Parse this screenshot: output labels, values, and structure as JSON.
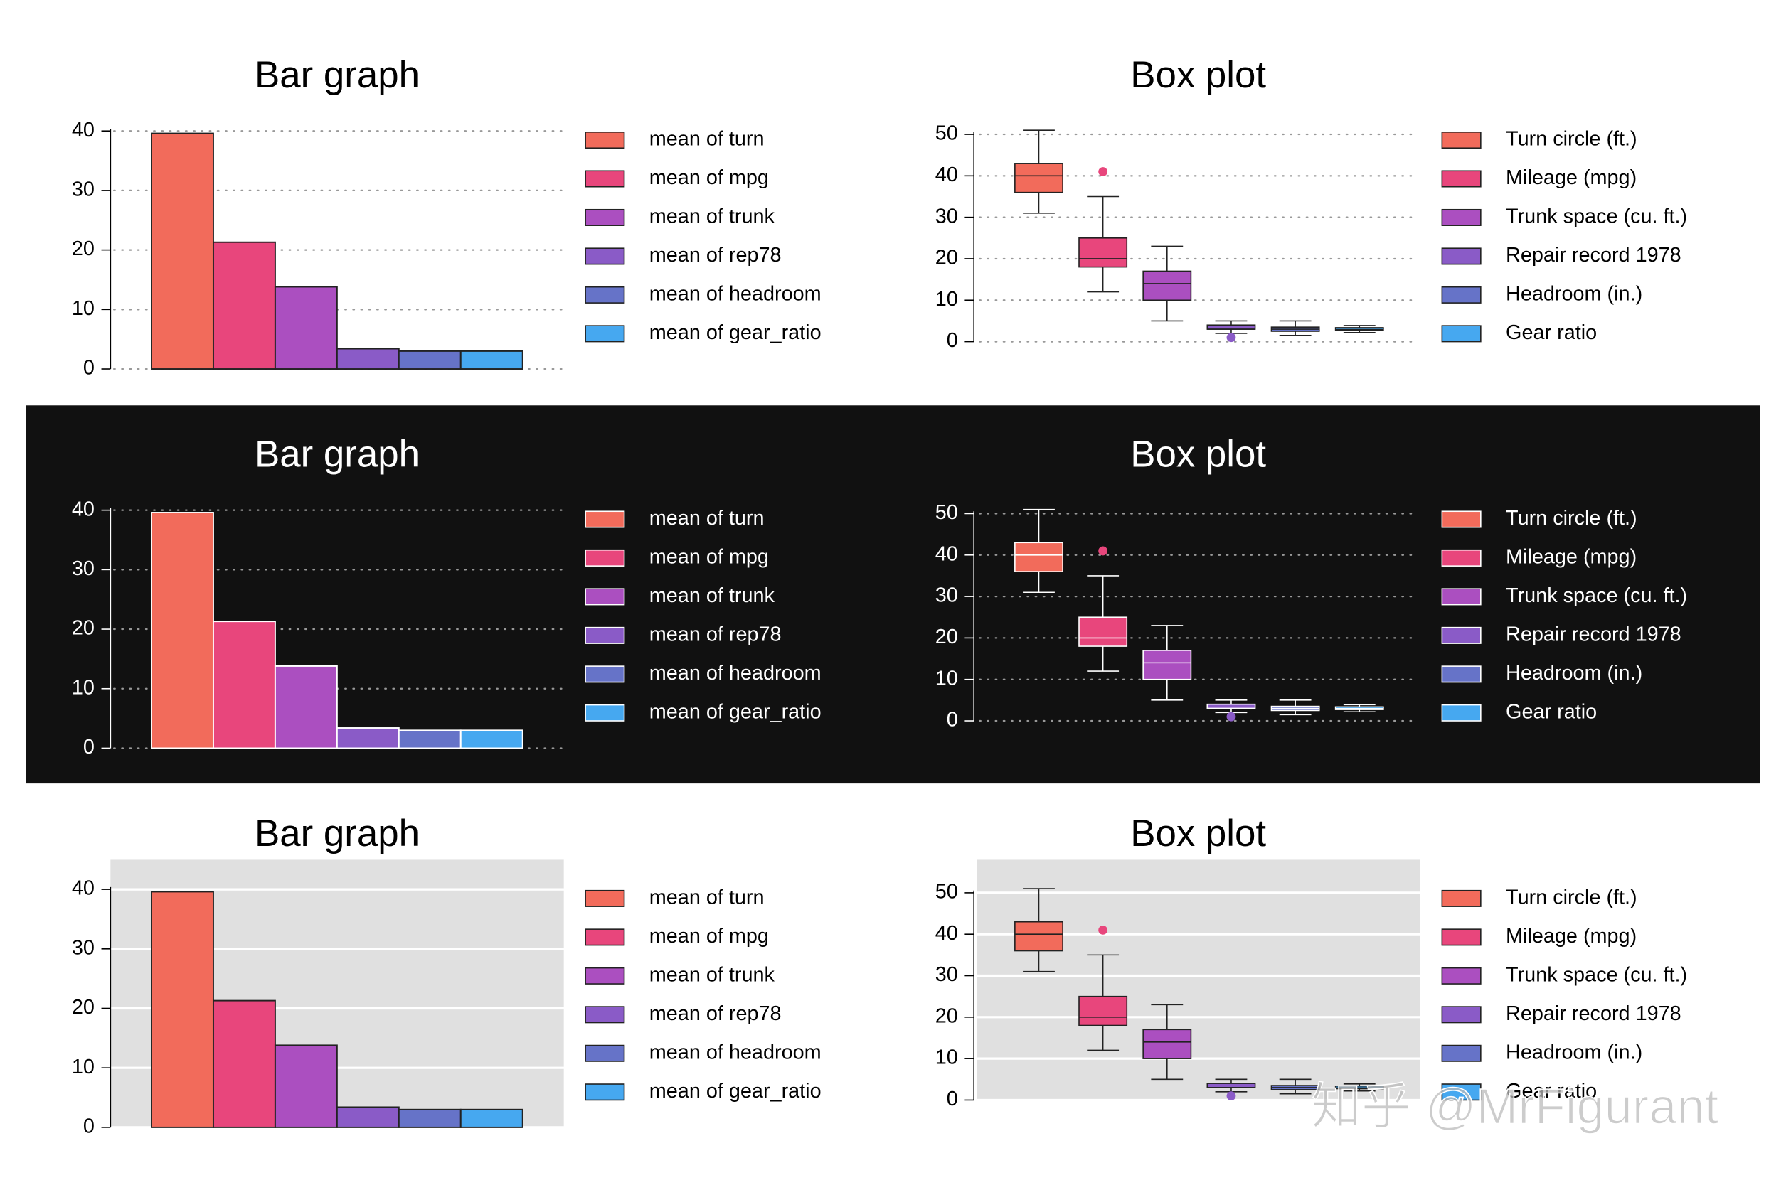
{
  "chart_data": [
    {
      "type": "bar",
      "title": "Bar graph",
      "background": "#ffffff",
      "text_color": "#000000",
      "outline": "#222222",
      "grid": "dotted",
      "grid_color": "#999999",
      "ylim": [
        0,
        40
      ],
      "yticks": [
        0,
        10,
        20,
        30,
        40
      ],
      "series": [
        {
          "name": "mean of turn",
          "color": "#f26b5b",
          "values": [
            39.6
          ]
        },
        {
          "name": "mean of mpg",
          "color": "#e8467c",
          "values": [
            21.3
          ]
        },
        {
          "name": "mean of trunk",
          "color": "#ab4fc0",
          "values": [
            13.8
          ]
        },
        {
          "name": "mean of rep78",
          "color": "#8a5bc7",
          "values": [
            3.4
          ]
        },
        {
          "name": "mean of headroom",
          "color": "#6673c8",
          "values": [
            3.0
          ]
        },
        {
          "name": "mean of gear_ratio",
          "color": "#46a8f0",
          "values": [
            3.0
          ]
        }
      ]
    },
    {
      "type": "box",
      "title": "Box plot",
      "background": "#ffffff",
      "text_color": "#000000",
      "outline": "#222222",
      "grid": "dotted",
      "grid_color": "#999999",
      "ylim": [
        0,
        50
      ],
      "yticks": [
        0,
        10,
        20,
        30,
        40,
        50
      ],
      "series": [
        {
          "name": "Turn circle (ft.)",
          "color": "#f26b5b",
          "min": 31,
          "q1": 36,
          "median": 40,
          "q3": 43,
          "max": 51,
          "outliers": []
        },
        {
          "name": "Mileage (mpg)",
          "color": "#e8467c",
          "min": 12,
          "q1": 18,
          "median": 20,
          "q3": 25,
          "max": 35,
          "outliers": [
            41
          ]
        },
        {
          "name": "Trunk space (cu. ft.)",
          "color": "#ab4fc0",
          "min": 5,
          "q1": 10,
          "median": 14,
          "q3": 17,
          "max": 23,
          "outliers": []
        },
        {
          "name": "Repair record 1978",
          "color": "#8a5bc7",
          "min": 2,
          "q1": 3,
          "median": 3,
          "q3": 4,
          "max": 5,
          "outliers": [
            1
          ]
        },
        {
          "name": "Headroom (in.)",
          "color": "#6673c8",
          "min": 1.5,
          "q1": 2.5,
          "median": 3,
          "q3": 3.5,
          "max": 5,
          "outliers": []
        },
        {
          "name": "Gear ratio",
          "color": "#46a8f0",
          "min": 2.19,
          "q1": 2.73,
          "median": 2.95,
          "q3": 3.37,
          "max": 3.89,
          "outliers": []
        }
      ]
    },
    {
      "type": "bar",
      "title": "Bar graph",
      "background": "#111111",
      "text_color": "#ffffff",
      "outline": "#ffffff",
      "grid": "dotted",
      "grid_color": "#999999",
      "ylim": [
        0,
        40
      ],
      "yticks": [
        0,
        10,
        20,
        30,
        40
      ],
      "series": [
        {
          "name": "mean of turn",
          "color": "#f26b5b",
          "values": [
            39.6
          ]
        },
        {
          "name": "mean of mpg",
          "color": "#e8467c",
          "values": [
            21.3
          ]
        },
        {
          "name": "mean of trunk",
          "color": "#ab4fc0",
          "values": [
            13.8
          ]
        },
        {
          "name": "mean of rep78",
          "color": "#8a5bc7",
          "values": [
            3.4
          ]
        },
        {
          "name": "mean of headroom",
          "color": "#6673c8",
          "values": [
            3.0
          ]
        },
        {
          "name": "mean of gear_ratio",
          "color": "#46a8f0",
          "values": [
            3.0
          ]
        }
      ]
    },
    {
      "type": "box",
      "title": "Box plot",
      "background": "#111111",
      "text_color": "#ffffff",
      "outline": "#ffffff",
      "grid": "dotted",
      "grid_color": "#999999",
      "ylim": [
        0,
        50
      ],
      "yticks": [
        0,
        10,
        20,
        30,
        40,
        50
      ],
      "series": [
        {
          "name": "Turn circle (ft.)",
          "color": "#f26b5b",
          "min": 31,
          "q1": 36,
          "median": 40,
          "q3": 43,
          "max": 51,
          "outliers": []
        },
        {
          "name": "Mileage (mpg)",
          "color": "#e8467c",
          "min": 12,
          "q1": 18,
          "median": 20,
          "q3": 25,
          "max": 35,
          "outliers": [
            41
          ]
        },
        {
          "name": "Trunk space (cu. ft.)",
          "color": "#ab4fc0",
          "min": 5,
          "q1": 10,
          "median": 14,
          "q3": 17,
          "max": 23,
          "outliers": []
        },
        {
          "name": "Repair record 1978",
          "color": "#8a5bc7",
          "min": 2,
          "q1": 3,
          "median": 3,
          "q3": 4,
          "max": 5,
          "outliers": [
            1
          ]
        },
        {
          "name": "Headroom (in.)",
          "color": "#6673c8",
          "min": 1.5,
          "q1": 2.5,
          "median": 3,
          "q3": 3.5,
          "max": 5,
          "outliers": []
        },
        {
          "name": "Gear ratio",
          "color": "#46a8f0",
          "min": 2.19,
          "q1": 2.73,
          "median": 2.95,
          "q3": 3.37,
          "max": 3.89,
          "outliers": []
        }
      ]
    },
    {
      "type": "bar",
      "title": "Bar graph",
      "background": "#ffffff",
      "plot_background": "#e0e0e0",
      "text_color": "#000000",
      "outline": "#222222",
      "grid": "solid",
      "grid_color": "#ffffff",
      "ylim": [
        0,
        40
      ],
      "yticks": [
        0,
        10,
        20,
        30,
        40
      ],
      "series": [
        {
          "name": "mean of turn",
          "color": "#f26b5b",
          "values": [
            39.6
          ]
        },
        {
          "name": "mean of mpg",
          "color": "#e8467c",
          "values": [
            21.3
          ]
        },
        {
          "name": "mean of trunk",
          "color": "#ab4fc0",
          "values": [
            13.8
          ]
        },
        {
          "name": "mean of rep78",
          "color": "#8a5bc7",
          "values": [
            3.4
          ]
        },
        {
          "name": "mean of headroom",
          "color": "#6673c8",
          "values": [
            3.0
          ]
        },
        {
          "name": "mean of gear_ratio",
          "color": "#46a8f0",
          "values": [
            3.0
          ]
        }
      ]
    },
    {
      "type": "box",
      "title": "Box plot",
      "background": "#ffffff",
      "plot_background": "#e0e0e0",
      "text_color": "#000000",
      "outline": "#222222",
      "grid": "solid",
      "grid_color": "#ffffff",
      "ylim": [
        0,
        50
      ],
      "yticks": [
        0,
        10,
        20,
        30,
        40,
        50
      ],
      "series": [
        {
          "name": "Turn circle (ft.)",
          "color": "#f26b5b",
          "min": 31,
          "q1": 36,
          "median": 40,
          "q3": 43,
          "max": 51,
          "outliers": []
        },
        {
          "name": "Mileage (mpg)",
          "color": "#e8467c",
          "min": 12,
          "q1": 18,
          "median": 20,
          "q3": 25,
          "max": 35,
          "outliers": [
            41
          ]
        },
        {
          "name": "Trunk space (cu. ft.)",
          "color": "#ab4fc0",
          "min": 5,
          "q1": 10,
          "median": 14,
          "q3": 17,
          "max": 23,
          "outliers": []
        },
        {
          "name": "Repair record 1978",
          "color": "#8a5bc7",
          "min": 2,
          "q1": 3,
          "median": 3,
          "q3": 4,
          "max": 5,
          "outliers": [
            1
          ]
        },
        {
          "name": "Headroom (in.)",
          "color": "#6673c8",
          "min": 1.5,
          "q1": 2.5,
          "median": 3,
          "q3": 3.5,
          "max": 5,
          "outliers": []
        },
        {
          "name": "Gear ratio",
          "color": "#46a8f0",
          "min": 2.19,
          "q1": 2.73,
          "median": 2.95,
          "q3": 3.37,
          "max": 3.89,
          "outliers": []
        }
      ]
    }
  ],
  "watermark": "知乎 @MrFigurant"
}
